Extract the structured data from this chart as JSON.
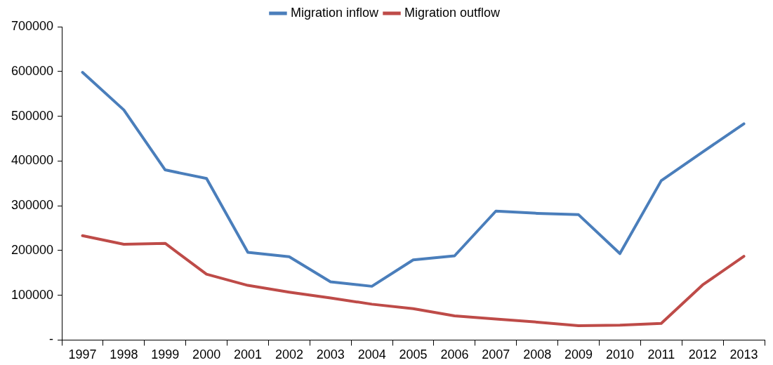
{
  "chart_data": {
    "type": "line",
    "categories": [
      "1997",
      "1998",
      "1999",
      "2000",
      "2001",
      "2002",
      "2003",
      "2004",
      "2005",
      "2006",
      "2007",
      "2008",
      "2009",
      "2010",
      "2011",
      "2012",
      "2013"
    ],
    "series": [
      {
        "name": "Migration inflow",
        "color": "#4a7ebb",
        "values": [
          598000,
          514000,
          380000,
          361000,
          196000,
          186000,
          130000,
          120000,
          179000,
          188000,
          288000,
          283000,
          280000,
          193000,
          356000,
          420000,
          483000
        ]
      },
      {
        "name": "Migration outflow",
        "color": "#be4b48",
        "values": [
          233000,
          214000,
          216000,
          147000,
          122000,
          107000,
          94000,
          80000,
          70000,
          54000,
          47000,
          40000,
          32000,
          33000,
          37000,
          123000,
          187000
        ]
      }
    ],
    "ylim": [
      0,
      700000
    ],
    "yticks": [
      {
        "value": 0,
        "label": "-"
      },
      100000,
      200000,
      300000,
      400000,
      500000,
      600000,
      700000
    ],
    "grid": false,
    "legend": "top",
    "marker": "none",
    "line_style": "solid"
  }
}
